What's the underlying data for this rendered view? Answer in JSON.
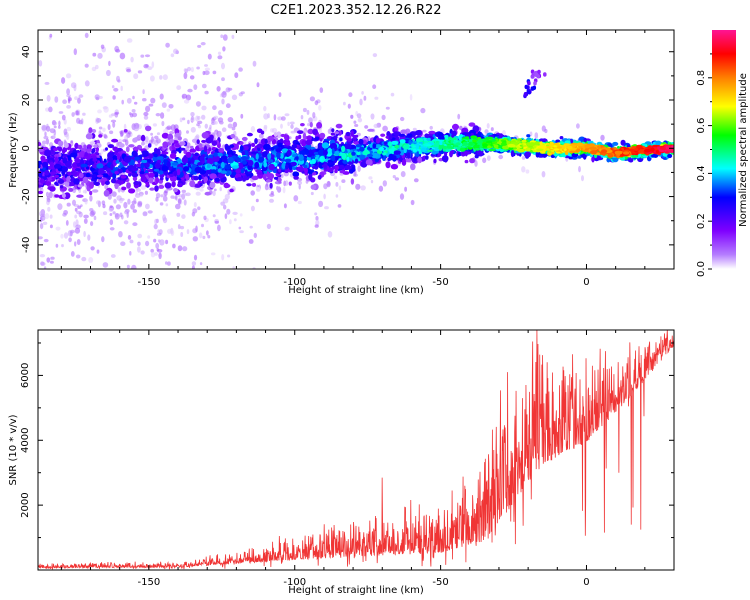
{
  "chart_data": [
    {
      "type": "heatmap",
      "title": "C2E1.2023.352.12.26.R22",
      "xlabel": "Height of straight line (km)",
      "ylabel": "Frequency (Hz)",
      "xlim": [
        -188,
        30
      ],
      "ylim": [
        -50,
        49
      ],
      "xticks": [
        -150,
        -100,
        -50,
        0
      ],
      "yticks": [
        -40,
        -20,
        0,
        20,
        40
      ],
      "colorbar": {
        "label": "Normalized spectral amplitude",
        "range": [
          0,
          1
        ],
        "ticks": [
          "0.0",
          "0.2",
          "0.4",
          "0.6",
          "0.8"
        ],
        "colors": [
          "#ffffff",
          "#7f00ff",
          "#0000ff",
          "#00ffff",
          "#00ff00",
          "#ffff00",
          "#ff8000",
          "#ff0000",
          "#ff1493"
        ]
      },
      "ridge": [
        {
          "x": -188,
          "y": -8
        },
        {
          "x": -150,
          "y": -7
        },
        {
          "x": -120,
          "y": -6
        },
        {
          "x": -100,
          "y": -4
        },
        {
          "x": -80,
          "y": -2
        },
        {
          "x": -60,
          "y": 1
        },
        {
          "x": -45,
          "y": 2
        },
        {
          "x": -30,
          "y": 2
        },
        {
          "x": -15,
          "y": 0
        },
        {
          "x": 0,
          "y": 0
        },
        {
          "x": 10,
          "y": -2
        },
        {
          "x": 30,
          "y": 0
        }
      ],
      "features": [
        {
          "x": -20,
          "y": 25,
          "amp": 0.3
        },
        {
          "x": -17,
          "y": 30,
          "amp": 0.15
        }
      ]
    },
    {
      "type": "line",
      "title": "",
      "xlabel": "Height of straight line (km)",
      "ylabel": "SNR (10 * v/v)",
      "xlim": [
        -188,
        30
      ],
      "ylim": [
        0,
        7400
      ],
      "xticks": [
        -150,
        -100,
        -50,
        0
      ],
      "yticks": [
        2000,
        4000,
        6000
      ],
      "color": "#f03535",
      "envelope": [
        {
          "x": -188,
          "base": 80,
          "spread": 120
        },
        {
          "x": -140,
          "base": 100,
          "spread": 120
        },
        {
          "x": -125,
          "base": 200,
          "spread": 250
        },
        {
          "x": -100,
          "base": 400,
          "spread": 600
        },
        {
          "x": -70,
          "base": 600,
          "spread": 1000
        },
        {
          "x": -50,
          "base": 700,
          "spread": 1200
        },
        {
          "x": -35,
          "base": 1200,
          "spread": 2000
        },
        {
          "x": -25,
          "base": 2500,
          "spread": 3000
        },
        {
          "x": -17,
          "base": 3500,
          "spread": 3000
        },
        {
          "x": -10,
          "base": 3800,
          "spread": 2000
        },
        {
          "x": 0,
          "base": 4200,
          "spread": 1800
        },
        {
          "x": 15,
          "base": 5500,
          "spread": 1200
        },
        {
          "x": 30,
          "base": 7000,
          "spread": 500
        }
      ],
      "peaks": [
        {
          "x": -17,
          "y": 7400
        },
        {
          "x": -27,
          "y": 6100
        },
        {
          "x": -22,
          "y": 5300
        },
        {
          "x": -70,
          "y": 2850
        },
        {
          "x": 18,
          "y": 6900
        }
      ]
    }
  ]
}
